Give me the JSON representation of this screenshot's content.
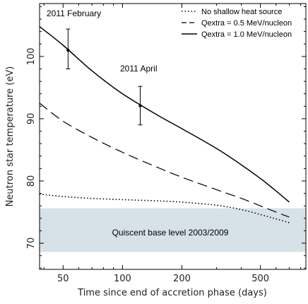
{
  "chart_data": {
    "type": "line",
    "xlabel": "Time since end of accretion phase (days)",
    "ylabel": "Neutron star temperature (eV)",
    "x_scale": "log",
    "xlim": [
      38,
      850
    ],
    "ylim": [
      65.8,
      108.5
    ],
    "x_ticks": [
      50,
      100,
      200,
      500
    ],
    "y_ticks": [
      70,
      80,
      90,
      100
    ],
    "grid": false,
    "legend_position": "top-right",
    "series": [
      {
        "name": "No shallow heat source",
        "style": "dotted",
        "color": "#000000",
        "x": [
          38,
          50,
          70,
          100,
          150,
          200,
          300,
          400,
          500,
          600,
          700
        ],
        "y": [
          77.9,
          77.5,
          77.2,
          77.0,
          76.8,
          76.6,
          76.1,
          75.4,
          74.6,
          73.9,
          73.3
        ]
      },
      {
        "name": "Qextra = 0.5 MeV/nucleon",
        "style": "dashed",
        "color": "#000000",
        "x": [
          38,
          50,
          70,
          100,
          150,
          200,
          300,
          400,
          500,
          600,
          700
        ],
        "y": [
          92.5,
          89.6,
          87.0,
          84.6,
          82.2,
          80.6,
          78.6,
          77.2,
          76.0,
          75.0,
          74.2
        ]
      },
      {
        "name": "Qextra = 1.0 MeV/nucleon",
        "style": "solid",
        "color": "#000000",
        "x": [
          38,
          50,
          70,
          100,
          150,
          200,
          300,
          400,
          500,
          600,
          700
        ],
        "y": [
          104.8,
          101.8,
          97.7,
          94.0,
          90.6,
          88.4,
          85.2,
          82.6,
          80.4,
          78.4,
          76.6
        ]
      }
    ],
    "observations": [
      {
        "label": "2011 February",
        "x": 53,
        "y": 101.0,
        "err_low": 98.0,
        "err_high": 104.4
      },
      {
        "label": "2011 April",
        "x": 123,
        "y": 92.1,
        "err_low": 89.0,
        "err_high": 95.2
      }
    ],
    "band": {
      "label": "Quiscent base level 2003/2009",
      "y_range": [
        68.6,
        75.6
      ],
      "color": "#d6e1e8"
    }
  }
}
